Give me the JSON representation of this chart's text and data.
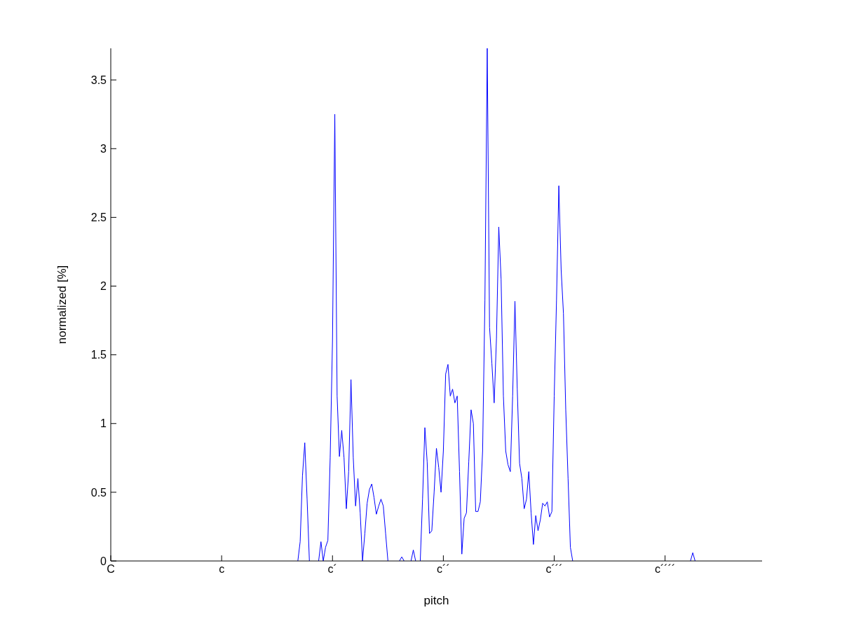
{
  "chart_data": {
    "type": "line",
    "xlabel": "pitch",
    "ylabel": "normalized [%]",
    "ylim": [
      0,
      3.73
    ],
    "yticks": [
      0,
      0.5,
      1,
      1.5,
      2,
      2.5,
      3,
      3.5
    ],
    "marker": "none",
    "line_style": "solid",
    "categories": [
      "C",
      null,
      null,
      null,
      null,
      null,
      null,
      null,
      null,
      null,
      null,
      null,
      null,
      null,
      null,
      null,
      null,
      null,
      null,
      null,
      null,
      null,
      null,
      null,
      null,
      null,
      null,
      null,
      null,
      null,
      null,
      null,
      null,
      null,
      null,
      null,
      null,
      null,
      null,
      null,
      null,
      null,
      null,
      null,
      null,
      null,
      null,
      null,
      "c",
      null,
      null,
      null,
      null,
      null,
      null,
      null,
      null,
      null,
      null,
      null,
      null,
      null,
      null,
      null,
      null,
      null,
      null,
      null,
      null,
      null,
      null,
      null,
      null,
      null,
      null,
      null,
      null,
      null,
      null,
      null,
      null,
      null,
      null,
      null,
      null,
      null,
      null,
      null,
      null,
      null,
      null,
      null,
      null,
      null,
      null,
      null,
      "c´",
      null,
      null,
      null,
      null,
      null,
      null,
      null,
      null,
      null,
      null,
      null,
      null,
      null,
      null,
      null,
      null,
      null,
      null,
      null,
      null,
      null,
      null,
      null,
      null,
      null,
      null,
      null,
      null,
      null,
      null,
      null,
      null,
      null,
      null,
      null,
      null,
      null,
      null,
      null,
      null,
      null,
      null,
      null,
      null,
      null,
      null,
      null,
      "c´´",
      null,
      null,
      null,
      null,
      null,
      null,
      null,
      null,
      null,
      null,
      null,
      null,
      null,
      null,
      null,
      null,
      null,
      null,
      null,
      null,
      null,
      null,
      null,
      null,
      null,
      null,
      null,
      null,
      null,
      null,
      null,
      null,
      null,
      null,
      null,
      null,
      null,
      null,
      null,
      null,
      null,
      null,
      null,
      null,
      null,
      null,
      null,
      "c´´´",
      null,
      null,
      null,
      null,
      null,
      null,
      null,
      null,
      null,
      null,
      null,
      null,
      null,
      null,
      null,
      null,
      null,
      null,
      null,
      null,
      null,
      null,
      null,
      null,
      null,
      null,
      null,
      null,
      null,
      null,
      null,
      null,
      null,
      null,
      null,
      null,
      null,
      null,
      null,
      null,
      null,
      null,
      null,
      null,
      null,
      null,
      null,
      "c´´´´",
      null,
      null,
      null,
      null,
      null,
      null,
      null,
      null,
      null,
      null,
      null,
      null,
      null,
      null,
      null,
      null,
      null,
      null,
      null,
      null,
      null,
      null,
      null,
      null,
      null,
      null,
      null,
      null,
      null,
      null,
      null,
      null,
      null,
      null,
      null,
      null,
      null,
      null,
      null,
      null,
      null,
      null
    ],
    "series": [
      {
        "color": "#0000ff",
        "values": [
          null,
          null,
          null,
          null,
          null,
          null,
          null,
          null,
          null,
          null,
          null,
          null,
          null,
          null,
          null,
          null,
          null,
          null,
          null,
          null,
          null,
          null,
          null,
          null,
          null,
          null,
          null,
          null,
          null,
          null,
          null,
          null,
          null,
          null,
          null,
          null,
          null,
          null,
          null,
          null,
          null,
          null,
          null,
          null,
          null,
          null,
          null,
          null,
          null,
          null,
          null,
          null,
          null,
          null,
          null,
          null,
          null,
          null,
          null,
          null,
          null,
          null,
          null,
          null,
          null,
          null,
          null,
          null,
          null,
          null,
          null,
          null,
          null,
          null,
          null,
          null,
          null,
          null,
          null,
          null,
          null,
          0,
          0.14,
          0.62,
          0.86,
          0.45,
          0,
          null,
          null,
          null,
          0,
          0.14,
          0,
          0.1,
          0.15,
          0.75,
          1.6,
          3.25,
          1.2,
          0.76,
          0.95,
          0.75,
          0.38,
          0.65,
          1.32,
          0.75,
          0.4,
          0.6,
          0.35,
          0,
          0.2,
          0.42,
          0.52,
          0.56,
          0.46,
          0.34,
          0.4,
          0.45,
          0.4,
          0.2,
          0,
          null,
          null,
          null,
          null,
          0,
          0.03,
          0,
          null,
          null,
          0,
          0.08,
          0,
          null,
          0,
          0.45,
          0.97,
          0.72,
          0.2,
          0.22,
          0.5,
          0.82,
          0.68,
          0.5,
          0.8,
          1.36,
          1.43,
          1.2,
          1.25,
          1.15,
          1.2,
          0.65,
          0.05,
          0.31,
          0.35,
          0.72,
          1.1,
          1.0,
          0.36,
          0.36,
          0.43,
          0.8,
          1.9,
          3.73,
          1.7,
          1.44,
          1.15,
          1.62,
          2.43,
          2.05,
          1.2,
          0.8,
          0.7,
          0.65,
          1.2,
          1.89,
          1.25,
          0.71,
          0.6,
          0.38,
          0.45,
          0.65,
          0.35,
          0.12,
          0.33,
          0.22,
          0.3,
          0.42,
          0.4,
          0.43,
          0.32,
          0.36,
          1.2,
          1.9,
          2.73,
          2.12,
          1.8,
          1.1,
          0.6,
          0.1,
          0,
          null,
          null,
          null,
          null,
          null,
          null,
          null,
          null,
          null,
          null,
          null,
          null,
          null,
          null,
          null,
          null,
          null,
          null,
          null,
          null,
          null,
          null,
          null,
          null,
          null,
          null,
          null,
          null,
          null,
          null,
          null,
          null,
          null,
          null,
          null,
          null,
          null,
          null,
          null,
          null,
          null,
          null,
          null,
          null,
          null,
          null,
          null,
          null,
          null,
          null,
          0,
          0.06,
          0,
          null,
          null,
          null,
          null,
          null,
          null,
          null,
          null,
          null,
          null,
          null,
          null,
          null,
          null,
          null,
          null,
          null,
          null,
          null,
          null,
          null,
          null,
          null,
          null,
          null,
          null,
          null,
          null,
          null
        ]
      }
    ]
  }
}
